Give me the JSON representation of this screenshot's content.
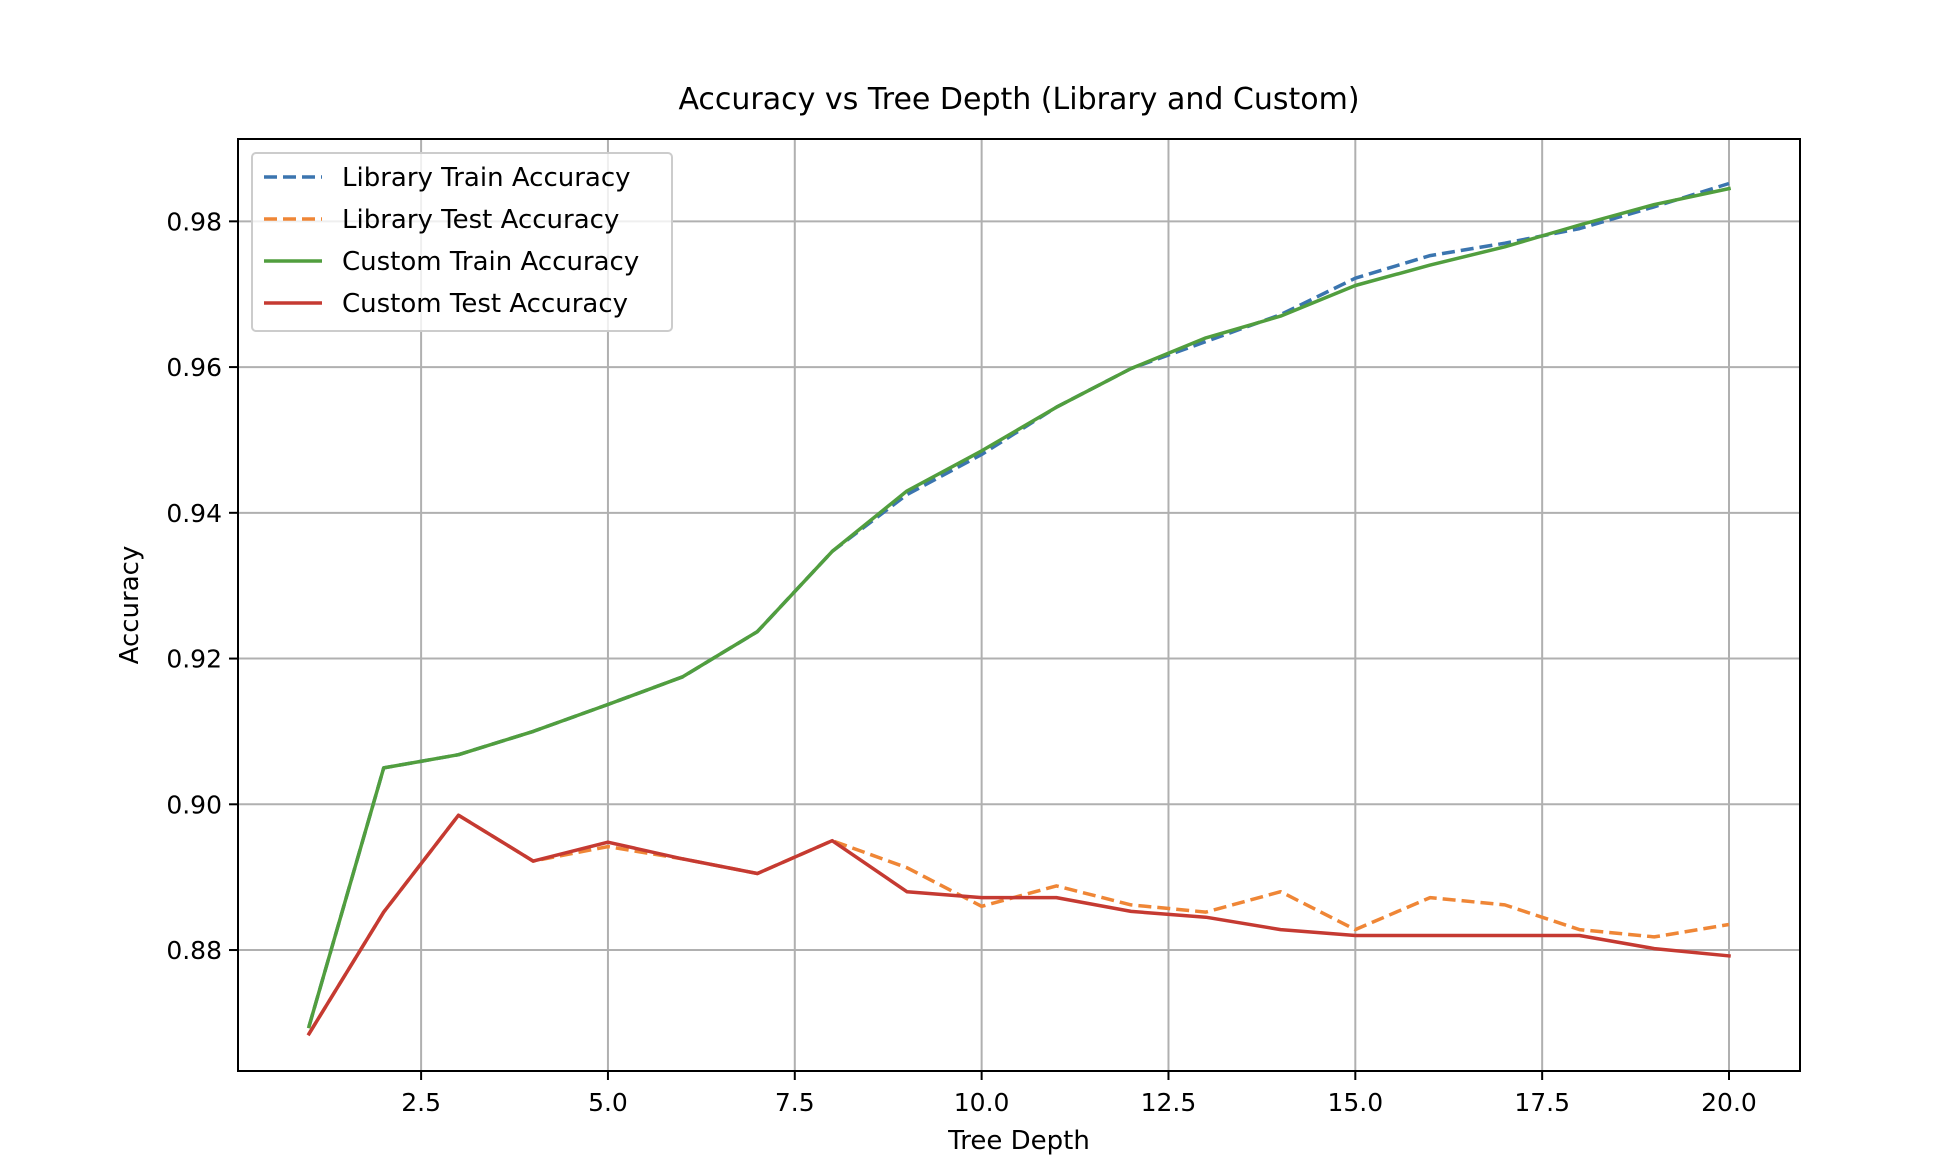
{
  "chart_data": {
    "type": "line",
    "title": "Accuracy vs Tree Depth (Library and Custom)",
    "xlabel": "Tree Depth",
    "ylabel": "Accuracy",
    "xlim": [
      0.05,
      20.95
    ],
    "ylim": [
      0.8634,
      0.9913
    ],
    "xticks": [
      2.5,
      5.0,
      7.5,
      10.0,
      12.5,
      15.0,
      17.5,
      20.0
    ],
    "xtick_labels": [
      "2.5",
      "5.0",
      "7.5",
      "10.0",
      "12.5",
      "15.0",
      "17.5",
      "20.0"
    ],
    "yticks": [
      0.88,
      0.9,
      0.92,
      0.94,
      0.96,
      0.98
    ],
    "ytick_labels": [
      "0.88",
      "0.90",
      "0.92",
      "0.94",
      "0.96",
      "0.98"
    ],
    "grid": true,
    "legend_position": "top-left",
    "x": [
      1,
      2,
      3,
      4,
      5,
      6,
      7,
      8,
      9,
      10,
      11,
      12,
      13,
      14,
      15,
      16,
      17,
      18,
      19,
      20
    ],
    "series": [
      {
        "name": "Library Train Accuracy",
        "color": "#3b75af",
        "dash": "dashed",
        "values": [
          0.8695,
          0.905,
          0.9068,
          0.91,
          0.9137,
          0.9175,
          0.9237,
          0.9347,
          0.9425,
          0.948,
          0.9545,
          0.9598,
          0.9635,
          0.9672,
          0.9722,
          0.9753,
          0.977,
          0.979,
          0.982,
          0.9852
        ]
      },
      {
        "name": "Library Test Accuracy",
        "color": "#ef8636",
        "dash": "dashed",
        "values": [
          0.8685,
          0.8852,
          0.8985,
          0.8922,
          0.8942,
          0.8925,
          0.8905,
          0.895,
          0.8913,
          0.886,
          0.8888,
          0.8862,
          0.8852,
          0.888,
          0.8828,
          0.8872,
          0.8862,
          0.8828,
          0.8818,
          0.8835
        ]
      },
      {
        "name": "Custom Train Accuracy",
        "color": "#519e3e",
        "dash": "solid",
        "values": [
          0.8695,
          0.905,
          0.9068,
          0.91,
          0.9137,
          0.9175,
          0.9237,
          0.9347,
          0.943,
          0.9485,
          0.9545,
          0.9598,
          0.964,
          0.967,
          0.9712,
          0.974,
          0.9765,
          0.9795,
          0.9823,
          0.9845
        ]
      },
      {
        "name": "Custom Test Accuracy",
        "color": "#c53a32",
        "dash": "solid",
        "values": [
          0.8685,
          0.8852,
          0.8985,
          0.8922,
          0.8948,
          0.8925,
          0.8905,
          0.895,
          0.888,
          0.8872,
          0.8872,
          0.8853,
          0.8845,
          0.8828,
          0.882,
          0.882,
          0.882,
          0.882,
          0.8802,
          0.8792
        ]
      }
    ]
  }
}
